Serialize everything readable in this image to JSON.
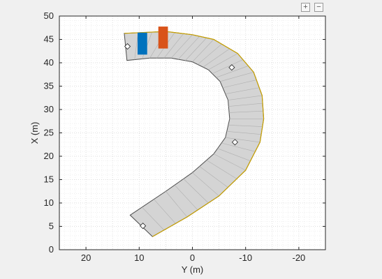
{
  "toolbar": {
    "zoom_in_icon": "zoom-in-icon",
    "zoom_in_glyph": "+",
    "zoom_out_icon": "zoom-out-icon",
    "zoom_out_glyph": "−"
  },
  "colors": {
    "figure_bg": "#f0f0f0",
    "axes_bg": "#ffffff",
    "road_fill": "#d4d4d4",
    "road_edge": "#4d4d4d",
    "lane_marking": "#c8a000",
    "ego_vehicle": "#0072bd",
    "other_vehicle": "#d95319"
  },
  "chart_data": {
    "type": "scatter",
    "title": "",
    "xlabel": "Y (m)",
    "ylabel": "X (m)",
    "xlim": [
      25,
      -25
    ],
    "ylim": [
      0,
      50
    ],
    "x_reversed": true,
    "x_ticks": [
      20,
      10,
      0,
      -10,
      -20
    ],
    "x_tick_labels": [
      "20",
      "10",
      "0",
      "-10",
      "-20"
    ],
    "y_ticks": [
      0,
      5,
      10,
      15,
      20,
      25,
      30,
      35,
      40,
      45,
      50
    ],
    "y_tick_labels": [
      "0",
      "5",
      "10",
      "15",
      "20",
      "25",
      "30",
      "35",
      "40",
      "45",
      "50"
    ],
    "grid": true,
    "minor_grid": true,
    "road": {
      "left_edge": [
        [
          11.7,
          7.4
        ],
        [
          5,
          12.5
        ],
        [
          0,
          16.5
        ],
        [
          -4,
          20.5
        ],
        [
          -6.2,
          24
        ],
        [
          -7,
          28
        ],
        [
          -6.7,
          32
        ],
        [
          -5.2,
          36
        ],
        [
          -3,
          38.5
        ],
        [
          0,
          40.2
        ],
        [
          4,
          41
        ],
        [
          8,
          41
        ],
        [
          12.3,
          40.5
        ]
      ],
      "right_edge": [
        [
          7.5,
          2.8
        ],
        [
          1,
          7
        ],
        [
          -5,
          11.5
        ],
        [
          -10,
          17
        ],
        [
          -12.7,
          23
        ],
        [
          -13.4,
          28
        ],
        [
          -13.1,
          33
        ],
        [
          -11.5,
          38
        ],
        [
          -8.5,
          42
        ],
        [
          -4,
          45
        ],
        [
          0,
          46
        ],
        [
          5,
          46.7
        ],
        [
          12.8,
          46.3
        ]
      ],
      "waypoints": [
        [
          9.3,
          5.1
        ],
        [
          -8,
          23
        ],
        [
          -7.4,
          39
        ],
        [
          12.2,
          43.5
        ]
      ]
    },
    "vehicles": [
      {
        "role": "ego",
        "x_center": 9.4,
        "y_center": 44.1,
        "width": 1.8,
        "length": 4.7
      },
      {
        "role": "other",
        "x_center": 5.5,
        "y_center": 45.4,
        "width": 1.8,
        "length": 4.7
      }
    ]
  }
}
